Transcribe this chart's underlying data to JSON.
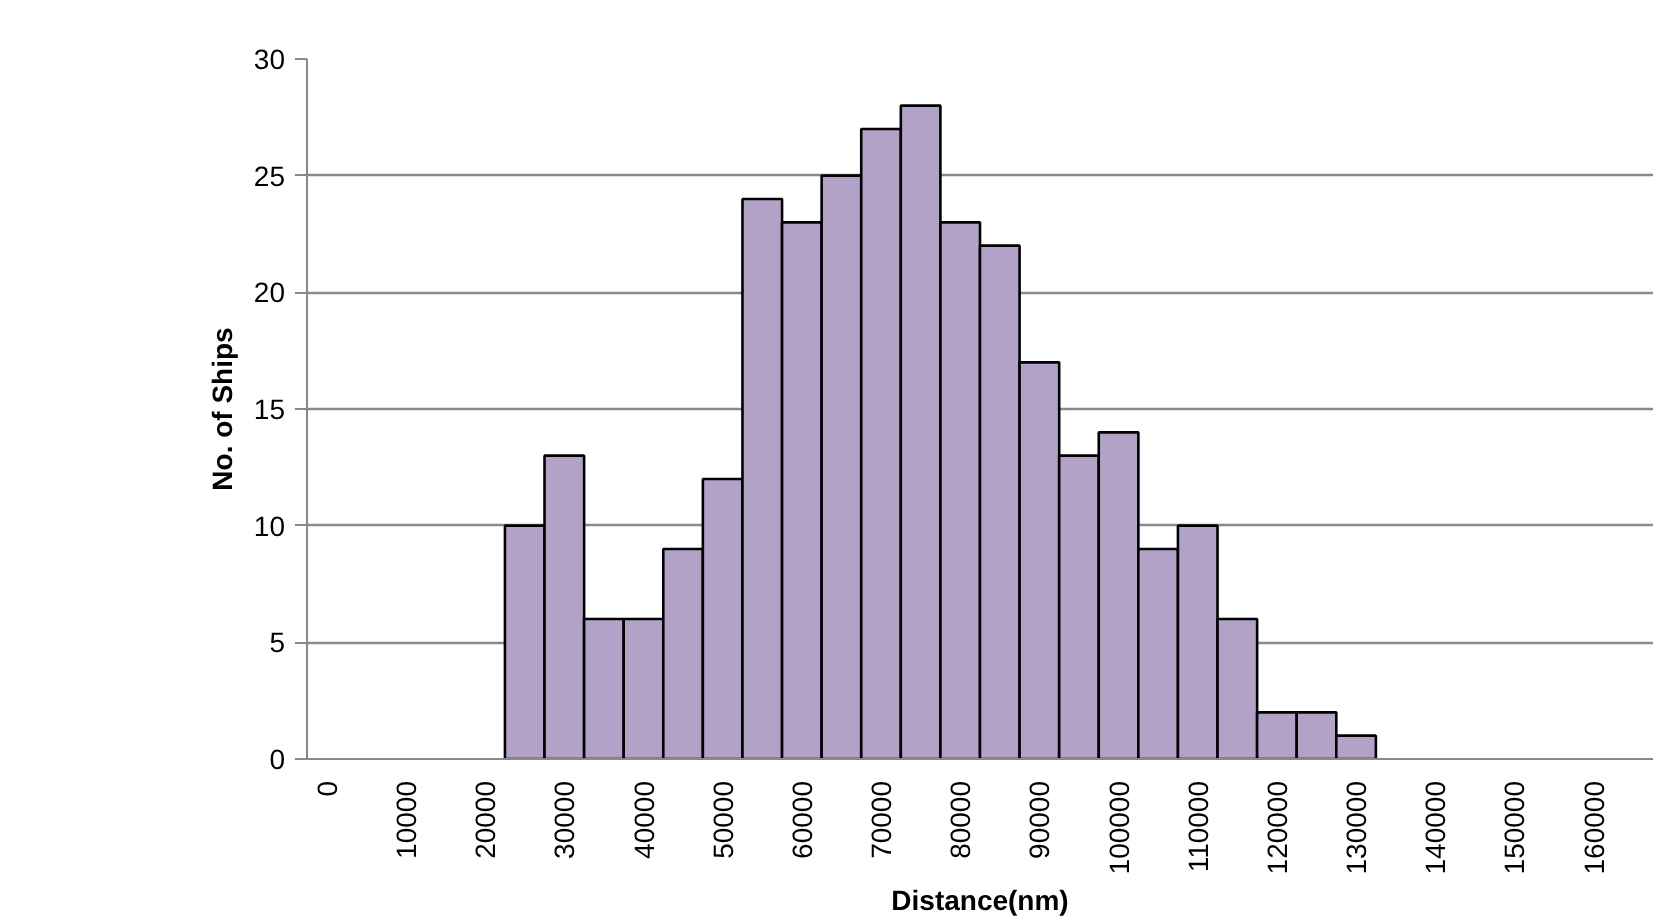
{
  "chart_data": {
    "type": "bar",
    "xlabel": "Distance(nm)",
    "ylabel": "No. of Ships",
    "categories": [
      "0",
      null,
      "10000",
      null,
      "20000",
      null,
      "30000",
      null,
      "40000",
      null,
      "50000",
      null,
      "60000",
      null,
      "70000",
      null,
      "80000",
      null,
      "90000",
      null,
      "100000",
      null,
      "110000",
      null,
      "120000",
      null,
      "130000",
      null,
      "140000",
      null,
      "150000",
      null,
      "160000",
      null
    ],
    "values": [
      null,
      null,
      null,
      null,
      null,
      10,
      13,
      6,
      6,
      9,
      12,
      24,
      23,
      25,
      27,
      28,
      23,
      22,
      17,
      13,
      14,
      9,
      10,
      6,
      2,
      2,
      1,
      null,
      null,
      null,
      null,
      null,
      null,
      null
    ],
    "color": "#b3a2c7",
    "ylim": [
      0,
      30
    ],
    "yticks": [
      0,
      5,
      10,
      15,
      20,
      25,
      30
    ],
    "grid": "y"
  }
}
